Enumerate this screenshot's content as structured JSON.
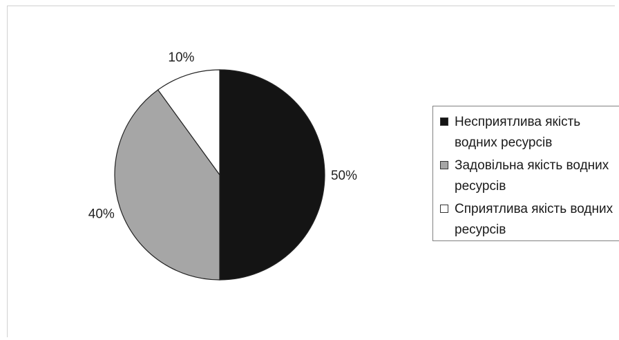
{
  "chart_data": {
    "type": "pie",
    "slices": [
      {
        "label": "Несприятлива якість водних ресурсів",
        "value": 50,
        "value_label": "50%",
        "color": "#141414"
      },
      {
        "label": "Задовільна якість водних ресурсів",
        "value": 40,
        "value_label": "40%",
        "color": "#a6a6a6"
      },
      {
        "label": "Сприятлива якість водних ресурсів",
        "value": 10,
        "value_label": "10%",
        "color": "#ffffff"
      }
    ],
    "start_angle": "12 o'clock",
    "direction": "clockwise",
    "legend_position": "right"
  }
}
